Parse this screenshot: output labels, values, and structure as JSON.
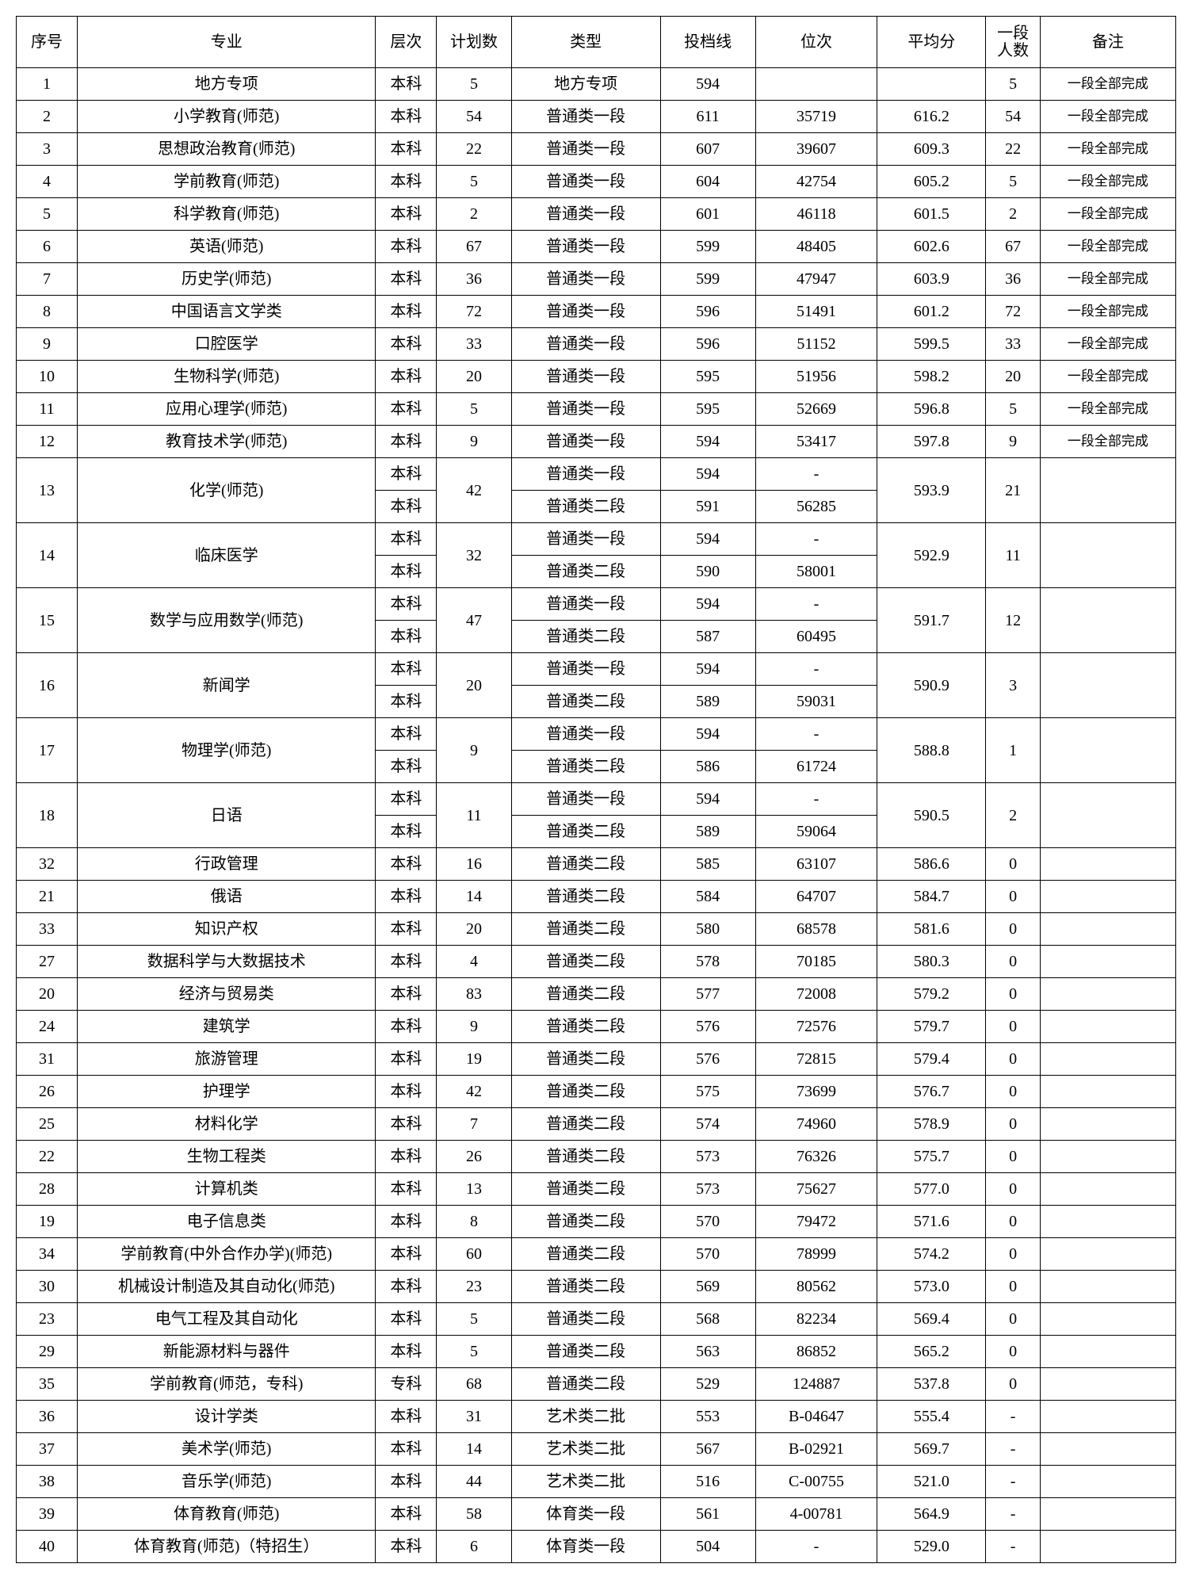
{
  "headers": {
    "seq": "序号",
    "major": "专业",
    "level": "层次",
    "plan": "计划数",
    "type": "类型",
    "line": "投档线",
    "rank": "位次",
    "avg": "平均分",
    "cnt_l1": "一段",
    "cnt_l2": "人数",
    "remark": "备注"
  },
  "simple_rows_top": [
    {
      "seq": "1",
      "major": "地方专项",
      "level": "本科",
      "plan": "5",
      "type": "地方专项",
      "line": "594",
      "rank": "",
      "avg": "",
      "cnt": "5",
      "remark": "一段全部完成"
    },
    {
      "seq": "2",
      "major": "小学教育(师范)",
      "level": "本科",
      "plan": "54",
      "type": "普通类一段",
      "line": "611",
      "rank": "35719",
      "avg": "616.2",
      "cnt": "54",
      "remark": "一段全部完成"
    },
    {
      "seq": "3",
      "major": "思想政治教育(师范)",
      "level": "本科",
      "plan": "22",
      "type": "普通类一段",
      "line": "607",
      "rank": "39607",
      "avg": "609.3",
      "cnt": "22",
      "remark": "一段全部完成"
    },
    {
      "seq": "4",
      "major": "学前教育(师范)",
      "level": "本科",
      "plan": "5",
      "type": "普通类一段",
      "line": "604",
      "rank": "42754",
      "avg": "605.2",
      "cnt": "5",
      "remark": "一段全部完成"
    },
    {
      "seq": "5",
      "major": "科学教育(师范)",
      "level": "本科",
      "plan": "2",
      "type": "普通类一段",
      "line": "601",
      "rank": "46118",
      "avg": "601.5",
      "cnt": "2",
      "remark": "一段全部完成"
    },
    {
      "seq": "6",
      "major": "英语(师范)",
      "level": "本科",
      "plan": "67",
      "type": "普通类一段",
      "line": "599",
      "rank": "48405",
      "avg": "602.6",
      "cnt": "67",
      "remark": "一段全部完成"
    },
    {
      "seq": "7",
      "major": "历史学(师范)",
      "level": "本科",
      "plan": "36",
      "type": "普通类一段",
      "line": "599",
      "rank": "47947",
      "avg": "603.9",
      "cnt": "36",
      "remark": "一段全部完成"
    },
    {
      "seq": "8",
      "major": "中国语言文学类",
      "level": "本科",
      "plan": "72",
      "type": "普通类一段",
      "line": "596",
      "rank": "51491",
      "avg": "601.2",
      "cnt": "72",
      "remark": "一段全部完成"
    },
    {
      "seq": "9",
      "major": "口腔医学",
      "level": "本科",
      "plan": "33",
      "type": "普通类一段",
      "line": "596",
      "rank": "51152",
      "avg": "599.5",
      "cnt": "33",
      "remark": "一段全部完成"
    },
    {
      "seq": "10",
      "major": "生物科学(师范)",
      "level": "本科",
      "plan": "20",
      "type": "普通类一段",
      "line": "595",
      "rank": "51956",
      "avg": "598.2",
      "cnt": "20",
      "remark": "一段全部完成"
    },
    {
      "seq": "11",
      "major": "应用心理学(师范)",
      "level": "本科",
      "plan": "5",
      "type": "普通类一段",
      "line": "595",
      "rank": "52669",
      "avg": "596.8",
      "cnt": "5",
      "remark": "一段全部完成"
    },
    {
      "seq": "12",
      "major": "教育技术学(师范)",
      "level": "本科",
      "plan": "9",
      "type": "普通类一段",
      "line": "594",
      "rank": "53417",
      "avg": "597.8",
      "cnt": "9",
      "remark": "一段全部完成"
    }
  ],
  "merged_rows": [
    {
      "seq": "13",
      "major": "化学(师范)",
      "plan": "42",
      "avg": "593.9",
      "cnt": "21",
      "sub": [
        {
          "level": "本科",
          "type": "普通类一段",
          "line": "594",
          "rank": "-"
        },
        {
          "level": "本科",
          "type": "普通类二段",
          "line": "591",
          "rank": "56285"
        }
      ]
    },
    {
      "seq": "14",
      "major": "临床医学",
      "plan": "32",
      "avg": "592.9",
      "cnt": "11",
      "sub": [
        {
          "level": "本科",
          "type": "普通类一段",
          "line": "594",
          "rank": "-"
        },
        {
          "level": "本科",
          "type": "普通类二段",
          "line": "590",
          "rank": "58001"
        }
      ]
    },
    {
      "seq": "15",
      "major": "数学与应用数学(师范)",
      "plan": "47",
      "avg": "591.7",
      "cnt": "12",
      "sub": [
        {
          "level": "本科",
          "type": "普通类一段",
          "line": "594",
          "rank": "-"
        },
        {
          "level": "本科",
          "type": "普通类二段",
          "line": "587",
          "rank": "60495"
        }
      ]
    },
    {
      "seq": "16",
      "major": "新闻学",
      "plan": "20",
      "avg": "590.9",
      "cnt": "3",
      "sub": [
        {
          "level": "本科",
          "type": "普通类一段",
          "line": "594",
          "rank": "-"
        },
        {
          "level": "本科",
          "type": "普通类二段",
          "line": "589",
          "rank": "59031"
        }
      ]
    },
    {
      "seq": "17",
      "major": "物理学(师范)",
      "plan": "9",
      "avg": "588.8",
      "cnt": "1",
      "sub": [
        {
          "level": "本科",
          "type": "普通类一段",
          "line": "594",
          "rank": "-"
        },
        {
          "level": "本科",
          "type": "普通类二段",
          "line": "586",
          "rank": "61724"
        }
      ]
    },
    {
      "seq": "18",
      "major": "日语",
      "plan": "11",
      "avg": "590.5",
      "cnt": "2",
      "sub": [
        {
          "level": "本科",
          "type": "普通类一段",
          "line": "594",
          "rank": "-"
        },
        {
          "level": "本科",
          "type": "普通类二段",
          "line": "589",
          "rank": "59064"
        }
      ]
    }
  ],
  "simple_rows_bottom": [
    {
      "seq": "32",
      "major": "行政管理",
      "level": "本科",
      "plan": "16",
      "type": "普通类二段",
      "line": "585",
      "rank": "63107",
      "avg": "586.6",
      "cnt": "0",
      "remark": ""
    },
    {
      "seq": "21",
      "major": "俄语",
      "level": "本科",
      "plan": "14",
      "type": "普通类二段",
      "line": "584",
      "rank": "64707",
      "avg": "584.7",
      "cnt": "0",
      "remark": ""
    },
    {
      "seq": "33",
      "major": "知识产权",
      "level": "本科",
      "plan": "20",
      "type": "普通类二段",
      "line": "580",
      "rank": "68578",
      "avg": "581.6",
      "cnt": "0",
      "remark": ""
    },
    {
      "seq": "27",
      "major": "数据科学与大数据技术",
      "level": "本科",
      "plan": "4",
      "type": "普通类二段",
      "line": "578",
      "rank": "70185",
      "avg": "580.3",
      "cnt": "0",
      "remark": ""
    },
    {
      "seq": "20",
      "major": "经济与贸易类",
      "level": "本科",
      "plan": "83",
      "type": "普通类二段",
      "line": "577",
      "rank": "72008",
      "avg": "579.2",
      "cnt": "0",
      "remark": ""
    },
    {
      "seq": "24",
      "major": "建筑学",
      "level": "本科",
      "plan": "9",
      "type": "普通类二段",
      "line": "576",
      "rank": "72576",
      "avg": "579.7",
      "cnt": "0",
      "remark": ""
    },
    {
      "seq": "31",
      "major": "旅游管理",
      "level": "本科",
      "plan": "19",
      "type": "普通类二段",
      "line": "576",
      "rank": "72815",
      "avg": "579.4",
      "cnt": "0",
      "remark": ""
    },
    {
      "seq": "26",
      "major": "护理学",
      "level": "本科",
      "plan": "42",
      "type": "普通类二段",
      "line": "575",
      "rank": "73699",
      "avg": "576.7",
      "cnt": "0",
      "remark": ""
    },
    {
      "seq": "25",
      "major": "材料化学",
      "level": "本科",
      "plan": "7",
      "type": "普通类二段",
      "line": "574",
      "rank": "74960",
      "avg": "578.9",
      "cnt": "0",
      "remark": ""
    },
    {
      "seq": "22",
      "major": "生物工程类",
      "level": "本科",
      "plan": "26",
      "type": "普通类二段",
      "line": "573",
      "rank": "76326",
      "avg": "575.7",
      "cnt": "0",
      "remark": ""
    },
    {
      "seq": "28",
      "major": "计算机类",
      "level": "本科",
      "plan": "13",
      "type": "普通类二段",
      "line": "573",
      "rank": "75627",
      "avg": "577.0",
      "cnt": "0",
      "remark": ""
    },
    {
      "seq": "19",
      "major": "电子信息类",
      "level": "本科",
      "plan": "8",
      "type": "普通类二段",
      "line": "570",
      "rank": "79472",
      "avg": "571.6",
      "cnt": "0",
      "remark": ""
    },
    {
      "seq": "34",
      "major": "学前教育(中外合作办学)(师范)",
      "level": "本科",
      "plan": "60",
      "type": "普通类二段",
      "line": "570",
      "rank": "78999",
      "avg": "574.2",
      "cnt": "0",
      "remark": ""
    },
    {
      "seq": "30",
      "major": "机械设计制造及其自动化(师范)",
      "level": "本科",
      "plan": "23",
      "type": "普通类二段",
      "line": "569",
      "rank": "80562",
      "avg": "573.0",
      "cnt": "0",
      "remark": ""
    },
    {
      "seq": "23",
      "major": "电气工程及其自动化",
      "level": "本科",
      "plan": "5",
      "type": "普通类二段",
      "line": "568",
      "rank": "82234",
      "avg": "569.4",
      "cnt": "0",
      "remark": ""
    },
    {
      "seq": "29",
      "major": "新能源材料与器件",
      "level": "本科",
      "plan": "5",
      "type": "普通类二段",
      "line": "563",
      "rank": "86852",
      "avg": "565.2",
      "cnt": "0",
      "remark": ""
    },
    {
      "seq": "35",
      "major": "学前教育(师范，专科)",
      "level": "专科",
      "plan": "68",
      "type": "普通类二段",
      "line": "529",
      "rank": "124887",
      "avg": "537.8",
      "cnt": "0",
      "remark": ""
    },
    {
      "seq": "36",
      "major": "设计学类",
      "level": "本科",
      "plan": "31",
      "type": "艺术类二批",
      "line": "553",
      "rank": "B-04647",
      "avg": "555.4",
      "cnt": "-",
      "remark": ""
    },
    {
      "seq": "37",
      "major": "美术学(师范)",
      "level": "本科",
      "plan": "14",
      "type": "艺术类二批",
      "line": "567",
      "rank": "B-02921",
      "avg": "569.7",
      "cnt": "-",
      "remark": ""
    },
    {
      "seq": "38",
      "major": "音乐学(师范)",
      "level": "本科",
      "plan": "44",
      "type": "艺术类二批",
      "line": "516",
      "rank": "C-00755",
      "avg": "521.0",
      "cnt": "-",
      "remark": ""
    },
    {
      "seq": "39",
      "major": "体育教育(师范)",
      "level": "本科",
      "plan": "58",
      "type": "体育类一段",
      "line": "561",
      "rank": "4-00781",
      "avg": "564.9",
      "cnt": "-",
      "remark": ""
    },
    {
      "seq": "40",
      "major": "体育教育(师范)（特招生）",
      "level": "本科",
      "plan": "6",
      "type": "体育类一段",
      "line": "504",
      "rank": "-",
      "avg": "529.0",
      "cnt": "-",
      "remark": ""
    }
  ]
}
